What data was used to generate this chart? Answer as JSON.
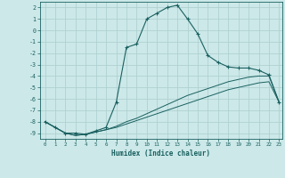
{
  "xlabel": "Humidex (Indice chaleur)",
  "bg_color": "#cce8e8",
  "grid_color": "#aacece",
  "line_color": "#1a6060",
  "xlim": [
    -0.5,
    23.3
  ],
  "ylim": [
    -9.5,
    2.5
  ],
  "xticks": [
    0,
    1,
    2,
    3,
    4,
    5,
    6,
    7,
    8,
    9,
    10,
    11,
    12,
    13,
    14,
    15,
    16,
    17,
    18,
    19,
    20,
    21,
    22,
    23
  ],
  "yticks": [
    2,
    1,
    0,
    -1,
    -2,
    -3,
    -4,
    -5,
    -6,
    -7,
    -8,
    -9
  ],
  "line1_x": [
    0,
    1,
    2,
    3,
    4,
    5,
    6,
    7,
    8,
    9,
    10,
    11,
    12,
    13,
    14,
    15,
    16,
    17,
    18,
    19,
    20,
    21,
    22,
    23
  ],
  "line1_y": [
    -8.0,
    -8.5,
    -9.0,
    -9.0,
    -9.1,
    -8.8,
    -8.5,
    -6.3,
    -1.5,
    -1.2,
    1.0,
    1.5,
    2.0,
    2.2,
    1.0,
    -0.3,
    -2.2,
    -2.8,
    -3.2,
    -3.3,
    -3.3,
    -3.5,
    -3.9,
    -6.3
  ],
  "line2_x": [
    0,
    1,
    2,
    3,
    4,
    5,
    6,
    7,
    8,
    9,
    10,
    11,
    12,
    13,
    14,
    15,
    16,
    17,
    18,
    19,
    20,
    21,
    22,
    23
  ],
  "line2_y": [
    -8.0,
    -8.5,
    -9.0,
    -9.2,
    -9.1,
    -8.9,
    -8.7,
    -8.5,
    -8.2,
    -7.9,
    -7.6,
    -7.3,
    -7.0,
    -6.7,
    -6.4,
    -6.1,
    -5.8,
    -5.5,
    -5.2,
    -5.0,
    -4.8,
    -4.6,
    -4.5,
    -6.3
  ],
  "line3_x": [
    0,
    1,
    2,
    3,
    4,
    5,
    6,
    7,
    8,
    9,
    10,
    11,
    12,
    13,
    14,
    15,
    16,
    17,
    18,
    19,
    20,
    21,
    22,
    23
  ],
  "line3_y": [
    -8.0,
    -8.5,
    -9.0,
    -9.2,
    -9.1,
    -8.9,
    -8.7,
    -8.4,
    -8.0,
    -7.7,
    -7.3,
    -6.9,
    -6.5,
    -6.1,
    -5.7,
    -5.4,
    -5.1,
    -4.8,
    -4.5,
    -4.3,
    -4.1,
    -4.0,
    -4.0,
    -6.3
  ]
}
